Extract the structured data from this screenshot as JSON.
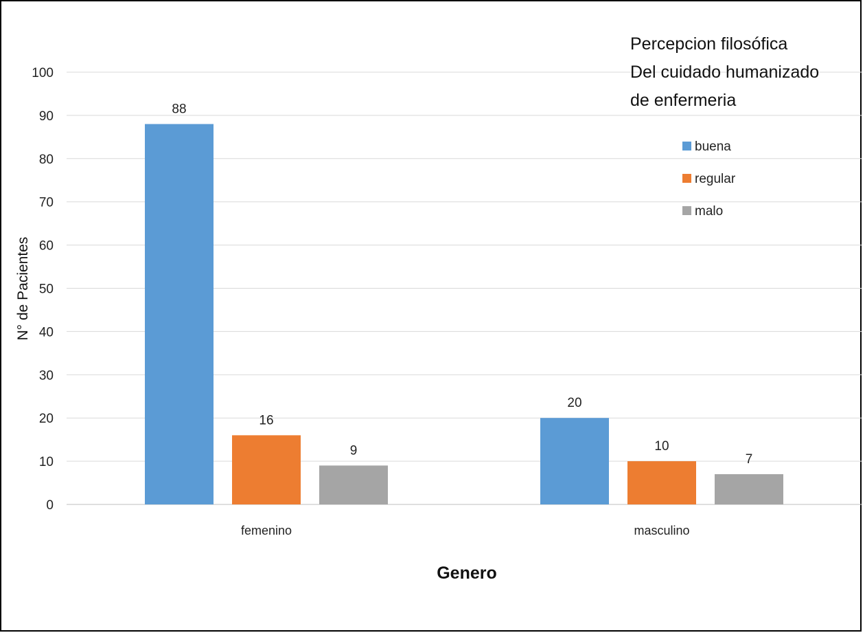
{
  "chart_data": {
    "type": "bar",
    "title_lines": [
      "Percepcion filosófica",
      "Del cuidado humanizado",
      "de enfermeria"
    ],
    "xlabel": "Genero",
    "ylabel": "N° de Pacientes",
    "categories": [
      "femenino",
      "masculino"
    ],
    "ylim": [
      0,
      100
    ],
    "yticks": [
      0,
      10,
      20,
      30,
      40,
      50,
      60,
      70,
      80,
      90,
      100
    ],
    "grid": true,
    "legend_position": "top-right",
    "series": [
      {
        "name": "buena",
        "values": [
          88,
          20
        ],
        "color": "#5b9bd5"
      },
      {
        "name": "regular",
        "values": [
          16,
          10
        ],
        "color": "#ed7d31"
      },
      {
        "name": "malo",
        "values": [
          9,
          7
        ],
        "color": "#a5a5a5"
      }
    ]
  }
}
